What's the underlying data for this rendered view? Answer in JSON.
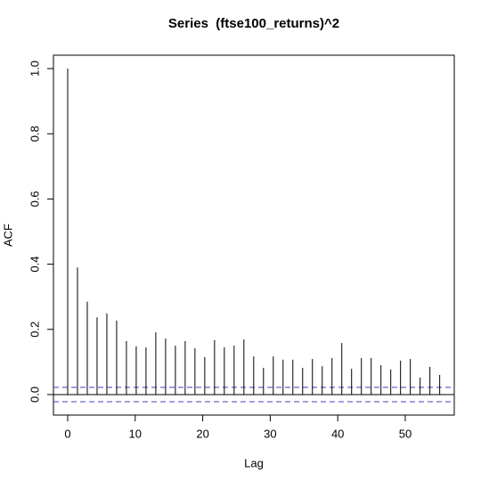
{
  "chart_data": {
    "type": "acf",
    "title": "Series  (ftse100_returns)^2",
    "x_label": "Lag",
    "y_label": "ACF",
    "x": [
      0,
      1.45,
      2.9,
      4.35,
      5.8,
      7.25,
      8.7,
      10.15,
      11.6,
      13.05,
      14.5,
      15.95,
      17.4,
      18.85,
      20.3,
      21.75,
      23.2,
      24.65,
      26.1,
      27.55,
      29,
      30.45,
      31.9,
      33.35,
      34.8,
      36.25,
      37.7,
      39.15,
      40.6,
      42.05,
      43.5,
      44.95,
      46.4,
      47.85,
      49.3,
      50.75,
      52.2,
      53.65,
      55.1
    ],
    "values": [
      1.0,
      0.39,
      0.285,
      0.237,
      0.249,
      0.227,
      0.164,
      0.148,
      0.145,
      0.191,
      0.172,
      0.15,
      0.164,
      0.142,
      0.115,
      0.167,
      0.145,
      0.15,
      0.169,
      0.117,
      0.082,
      0.117,
      0.107,
      0.107,
      0.082,
      0.109,
      0.087,
      0.112,
      0.158,
      0.079,
      0.112,
      0.112,
      0.09,
      0.077,
      0.104,
      0.109,
      0.052,
      0.085,
      0.06
    ],
    "conf_limit": 0.022,
    "color": "#000000",
    "conf_color": "#4040c0",
    "xlim": [
      -2.11,
      57.26
    ],
    "ylim": [
      -0.063,
      1.041
    ],
    "xticks": [
      0,
      10,
      20,
      30,
      40,
      50
    ],
    "yticks": [
      {
        "value": 0,
        "label": "0.0"
      },
      {
        "value": 0.2,
        "label": "0.2"
      },
      {
        "value": 0.4,
        "label": "0.4"
      },
      {
        "value": 0.6,
        "label": "0.6"
      },
      {
        "value": 0.8,
        "label": "0.8"
      },
      {
        "value": 1,
        "label": "1.0"
      }
    ]
  }
}
